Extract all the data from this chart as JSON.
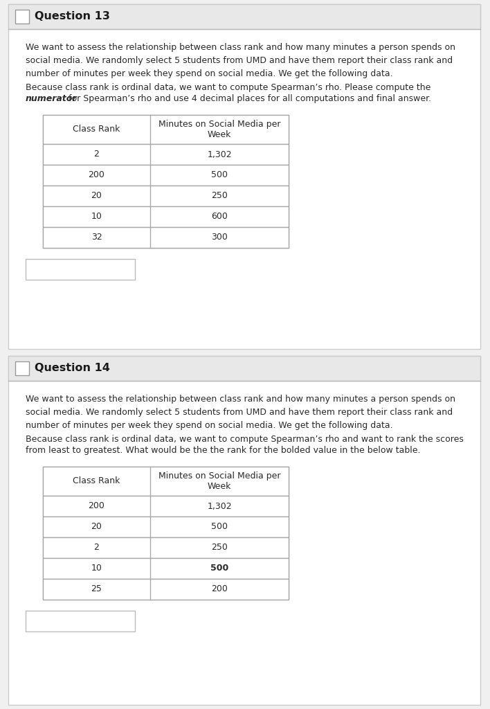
{
  "q13_title": "Question 13",
  "q13_para1": "We want to assess the relationship between class rank and how many minutes a person spends on\nsocial media. We randomly select 5 students from UMD and have them report their class rank and\nnumber of minutes per week they spend on social media. We get the following data.",
  "q13_para2_plain": "Because class rank is ordinal data, we want to compute Spearman’s rho. Please compute the",
  "q13_para2_bold": "numerator",
  "q13_para2_rest": " for Spearman’s rho and use 4 decimal places for all computations and final answer.",
  "q13_col1_header": "Class Rank",
  "q13_col2_header_line1": "Minutes on Social Media per",
  "q13_col2_header_line2": "Week",
  "q13_rows": [
    [
      "2",
      "1,302",
      false
    ],
    [
      "200",
      "500",
      false
    ],
    [
      "20",
      "250",
      false
    ],
    [
      "10",
      "600",
      false
    ],
    [
      "32",
      "300",
      false
    ]
  ],
  "q14_title": "Question 14",
  "q14_para1": "We want to assess the relationship between class rank and how many minutes a person spends on\nsocial media. We randomly select 5 students from UMD and have them report their class rank and\nnumber of minutes per week they spend on social media. We get the following data.",
  "q14_para2_line1": "Because class rank is ordinal data, we want to compute Spearman’s rho and want to rank the scores",
  "q14_para2_line2": "from least to greatest. What would be the the rank for the bolded value in the below table.",
  "q14_col1_header": "Class Rank",
  "q14_col2_header_line1": "Minutes on Social Media per",
  "q14_col2_header_line2": "Week",
  "q14_rows": [
    [
      "200",
      "1,302",
      false
    ],
    [
      "20",
      "500",
      false
    ],
    [
      "2",
      "250",
      false
    ],
    [
      "10",
      "500",
      true
    ],
    [
      "25",
      "200",
      false
    ]
  ],
  "bg_color": "#f0f0f0",
  "card_color": "#ffffff",
  "card_header_bg": "#e8e8e8",
  "border_color": "#cccccc",
  "text_color": "#2a2a2a",
  "title_color": "#1a1a1a",
  "table_border_color": "#aaaaaa",
  "answer_box_color": "#ffffff",
  "answer_box_border": "#bbbbbb",
  "separator_color": "#bbbbbb",
  "checkbox_border": "#999999"
}
